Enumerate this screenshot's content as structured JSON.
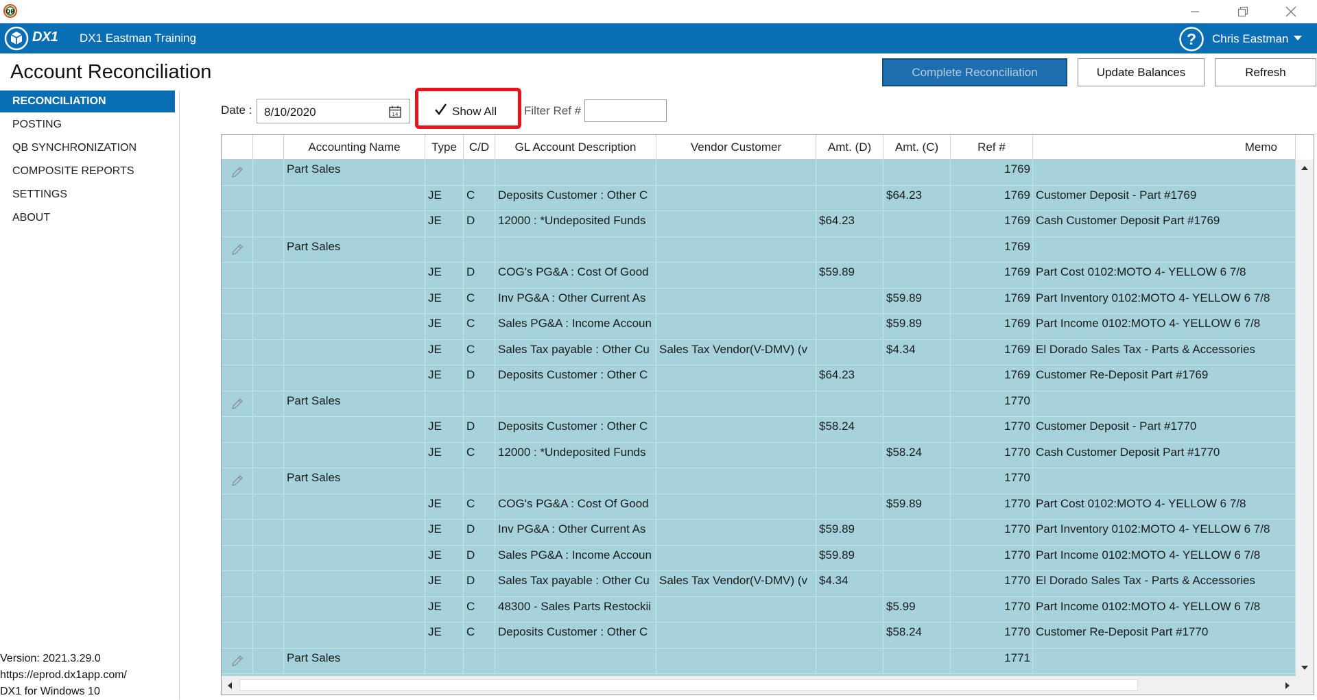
{
  "window": {
    "app_icon": "quickbooks-sync-icon",
    "controls": [
      "minimize-icon",
      "maximize-icon",
      "close-icon"
    ]
  },
  "appbar": {
    "logo_text": "DX1",
    "company": "DX1 Eastman Training",
    "user": "Chris Eastman",
    "help_icon": "help-icon",
    "brand_color": "#0a6eb4"
  },
  "page": {
    "title": "Account Reconciliation"
  },
  "toolbar": {
    "complete_label": "Complete Reconciliation",
    "update_label": "Update Balances",
    "refresh_label": "Refresh"
  },
  "sidebar": {
    "items": [
      {
        "label": "RECONCILIATION",
        "active": true
      },
      {
        "label": "POSTING",
        "active": false
      },
      {
        "label": "QB SYNCHRONIZATION",
        "active": false
      },
      {
        "label": "COMPOSITE REPORTS",
        "active": false
      },
      {
        "label": "SETTINGS",
        "active": false
      },
      {
        "label": "ABOUT",
        "active": false
      }
    ],
    "footer": {
      "version": "Version: 2021.3.29.0",
      "url": "https://eprod.dx1app.com/",
      "platform": "DX1 for Windows 10"
    }
  },
  "filters": {
    "date_label": "Date :",
    "date_value": "8/10/2020",
    "show_all_label": "Show All",
    "show_all_checked": true,
    "filter_ref_label": "Filter Ref #",
    "filter_ref_value": "",
    "highlight_color": "#e8131b"
  },
  "grid": {
    "columns": [
      "",
      "",
      "Accounting Name",
      "Type",
      "C/D",
      "GL Account Description",
      "Vendor Customer",
      "Amt. (D)",
      "Amt. (C)",
      "Ref #",
      "Memo"
    ],
    "row_color": "#a6d3db",
    "rows": [
      {
        "group": true,
        "name": "Part Sales",
        "type": "",
        "cd": "",
        "gl": "",
        "vendor": "",
        "amt_d": "",
        "amt_c": "",
        "ref": "1769",
        "memo": ""
      },
      {
        "group": false,
        "name": "",
        "type": "JE",
        "cd": "C",
        "gl": "Deposits Customer : Other C",
        "vendor": "",
        "amt_d": "",
        "amt_c": "$64.23",
        "ref": "1769",
        "memo": "Customer Deposit - Part #1769"
      },
      {
        "group": false,
        "name": "",
        "type": "JE",
        "cd": "D",
        "gl": "12000 : *Undeposited Funds",
        "vendor": "",
        "amt_d": "$64.23",
        "amt_c": "",
        "ref": "1769",
        "memo": "Cash Customer Deposit Part #1769"
      },
      {
        "group": true,
        "name": "Part Sales",
        "type": "",
        "cd": "",
        "gl": "",
        "vendor": "",
        "amt_d": "",
        "amt_c": "",
        "ref": "1769",
        "memo": ""
      },
      {
        "group": false,
        "name": "",
        "type": "JE",
        "cd": "D",
        "gl": "COG's PG&A : Cost Of Good",
        "vendor": "",
        "amt_d": "$59.89",
        "amt_c": "",
        "ref": "1769",
        "memo": "Part Cost 0102:MOTO 4- YELLOW 6 7/8"
      },
      {
        "group": false,
        "name": "",
        "type": "JE",
        "cd": "C",
        "gl": "Inv PG&A : Other Current As",
        "vendor": "",
        "amt_d": "",
        "amt_c": "$59.89",
        "ref": "1769",
        "memo": "Part Inventory 0102:MOTO 4- YELLOW 6 7/8"
      },
      {
        "group": false,
        "name": "",
        "type": "JE",
        "cd": "C",
        "gl": "Sales PG&A : Income Accoun",
        "vendor": "",
        "amt_d": "",
        "amt_c": "$59.89",
        "ref": "1769",
        "memo": "Part Income 0102:MOTO 4- YELLOW 6 7/8"
      },
      {
        "group": false,
        "name": "",
        "type": "JE",
        "cd": "C",
        "gl": "Sales Tax payable : Other Cu",
        "vendor": "Sales Tax Vendor(V-DMV) (v",
        "amt_d": "",
        "amt_c": "$4.34",
        "ref": "1769",
        "memo": "El Dorado Sales Tax - Parts & Accessories"
      },
      {
        "group": false,
        "name": "",
        "type": "JE",
        "cd": "D",
        "gl": "Deposits Customer : Other C",
        "vendor": "",
        "amt_d": "$64.23",
        "amt_c": "",
        "ref": "1769",
        "memo": "Customer Re-Deposit Part #1769"
      },
      {
        "group": true,
        "name": "Part Sales",
        "type": "",
        "cd": "",
        "gl": "",
        "vendor": "",
        "amt_d": "",
        "amt_c": "",
        "ref": "1770",
        "memo": ""
      },
      {
        "group": false,
        "name": "",
        "type": "JE",
        "cd": "D",
        "gl": "Deposits Customer : Other C",
        "vendor": "",
        "amt_d": "$58.24",
        "amt_c": "",
        "ref": "1770",
        "memo": "Customer Deposit - Part #1770"
      },
      {
        "group": false,
        "name": "",
        "type": "JE",
        "cd": "C",
        "gl": "12000 : *Undeposited Funds",
        "vendor": "",
        "amt_d": "",
        "amt_c": "$58.24",
        "ref": "1770",
        "memo": "Cash Customer Deposit Part #1770"
      },
      {
        "group": true,
        "name": "Part Sales",
        "type": "",
        "cd": "",
        "gl": "",
        "vendor": "",
        "amt_d": "",
        "amt_c": "",
        "ref": "1770",
        "memo": ""
      },
      {
        "group": false,
        "name": "",
        "type": "JE",
        "cd": "C",
        "gl": "COG's PG&A : Cost Of Good",
        "vendor": "",
        "amt_d": "",
        "amt_c": "$59.89",
        "ref": "1770",
        "memo": "Part Cost 0102:MOTO 4- YELLOW 6 7/8"
      },
      {
        "group": false,
        "name": "",
        "type": "JE",
        "cd": "D",
        "gl": "Inv PG&A : Other Current As",
        "vendor": "",
        "amt_d": "$59.89",
        "amt_c": "",
        "ref": "1770",
        "memo": "Part Inventory 0102:MOTO 4- YELLOW 6 7/8"
      },
      {
        "group": false,
        "name": "",
        "type": "JE",
        "cd": "D",
        "gl": "Sales PG&A : Income Accoun",
        "vendor": "",
        "amt_d": "$59.89",
        "amt_c": "",
        "ref": "1770",
        "memo": "Part Income 0102:MOTO 4- YELLOW 6 7/8"
      },
      {
        "group": false,
        "name": "",
        "type": "JE",
        "cd": "D",
        "gl": "Sales Tax payable : Other Cu",
        "vendor": "Sales Tax Vendor(V-DMV) (v",
        "amt_d": "$4.34",
        "amt_c": "",
        "ref": "1770",
        "memo": "El Dorado Sales Tax - Parts & Accessories"
      },
      {
        "group": false,
        "name": "",
        "type": "JE",
        "cd": "C",
        "gl": "48300 - Sales Parts Restockii",
        "vendor": "",
        "amt_d": "",
        "amt_c": "$5.99",
        "ref": "1770",
        "memo": "Part Income 0102:MOTO 4- YELLOW 6 7/8"
      },
      {
        "group": false,
        "name": "",
        "type": "JE",
        "cd": "C",
        "gl": "Deposits Customer : Other C",
        "vendor": "",
        "amt_d": "",
        "amt_c": "$58.24",
        "ref": "1770",
        "memo": "Customer Re-Deposit Part #1770"
      },
      {
        "group": true,
        "name": "Part Sales",
        "type": "",
        "cd": "",
        "gl": "",
        "vendor": "",
        "amt_d": "",
        "amt_c": "",
        "ref": "1771",
        "memo": ""
      }
    ]
  }
}
